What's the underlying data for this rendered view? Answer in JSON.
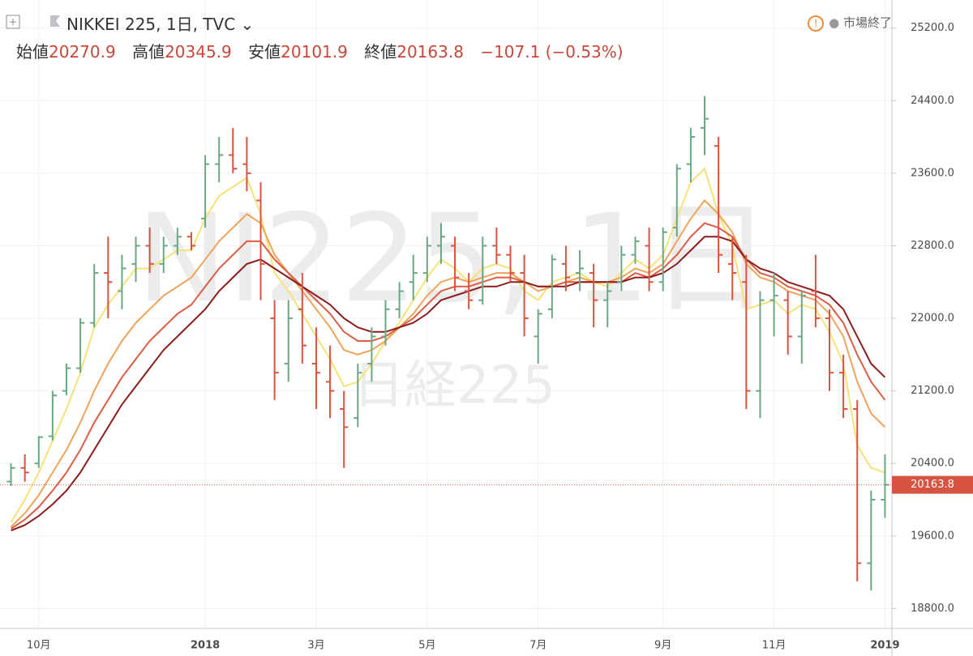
{
  "header": {
    "symbol": "NIKKEI 225, 1日, TVC",
    "open_label": "始値",
    "open": 20270.9,
    "high_label": "高値",
    "high": 20345.9,
    "low_label": "安値",
    "low": 20101.9,
    "close_label": "終値",
    "close": 20163.8,
    "change": "−107.1 (−0.53%)",
    "status": "市場終了"
  },
  "chart_data": {
    "type": "ohlc",
    "watermark": "NI225, 1日",
    "watermark_sub": "日経225",
    "categories": [
      null,
      null,
      "10月",
      null,
      null,
      null,
      null,
      null,
      null,
      null,
      null,
      null,
      null,
      null,
      "2018",
      null,
      null,
      null,
      null,
      null,
      null,
      null,
      "3月",
      null,
      null,
      null,
      null,
      null,
      null,
      null,
      "5月",
      null,
      null,
      null,
      null,
      null,
      null,
      null,
      "7月",
      null,
      null,
      null,
      null,
      null,
      null,
      null,
      null,
      "9月",
      null,
      null,
      null,
      null,
      null,
      null,
      null,
      "11月",
      null,
      null,
      null,
      null,
      null,
      null,
      null,
      "2019"
    ],
    "open": [
      20200,
      20350,
      20400,
      20700,
      21200,
      21450,
      21950,
      22500,
      22300,
      22600,
      22800,
      22600,
      22800,
      22900,
      23100,
      23700,
      23800,
      23700,
      23300,
      22000,
      21500,
      22100,
      21500,
      21300,
      21000,
      20900,
      21500,
      21800,
      22100,
      22400,
      22500,
      22800,
      22800,
      22300,
      22200,
      22800,
      22700,
      22500,
      21800,
      22100,
      22600,
      22500,
      22500,
      22200,
      22400,
      22700,
      22800,
      22400,
      23000,
      23700,
      24100,
      23900,
      22600,
      22400,
      21200,
      22200,
      22200,
      21800,
      22300,
      22000,
      21400,
      21000,
      19300,
      20000
    ],
    "high": [
      20400,
      20500,
      20700,
      21200,
      21500,
      22000,
      22600,
      22900,
      22700,
      22900,
      23000,
      22900,
      23000,
      22950,
      23800,
      24000,
      24100,
      24000,
      23500,
      22200,
      22200,
      22500,
      21900,
      21700,
      21200,
      21500,
      21900,
      22200,
      22400,
      22700,
      22900,
      23050,
      22900,
      22500,
      22900,
      23000,
      22800,
      22700,
      22100,
      22700,
      22800,
      22750,
      22600,
      22400,
      22800,
      22900,
      23000,
      23000,
      23700,
      24100,
      24450,
      24000,
      22900,
      22700,
      22300,
      22500,
      22300,
      22300,
      22700,
      22100,
      21600,
      21100,
      20100,
      20500
    ],
    "low": [
      20150,
      20200,
      20350,
      20650,
      21150,
      21400,
      21900,
      22000,
      22100,
      22400,
      22500,
      22500,
      22700,
      22750,
      23000,
      23500,
      23600,
      23400,
      22200,
      21100,
      21300,
      21500,
      21000,
      20900,
      20350,
      20800,
      21300,
      21700,
      22000,
      22200,
      22400,
      22600,
      22300,
      22100,
      22150,
      22600,
      22400,
      21800,
      21500,
      22000,
      22300,
      22300,
      21900,
      21900,
      22300,
      22600,
      22300,
      22300,
      22900,
      23500,
      23800,
      22500,
      22200,
      21000,
      20900,
      21800,
      21600,
      21500,
      21900,
      21200,
      20900,
      19100,
      19000,
      19800
    ],
    "close": [
      20350,
      20300,
      20690,
      21150,
      21450,
      21950,
      22500,
      22400,
      22550,
      22800,
      22600,
      22800,
      22900,
      22800,
      23700,
      23800,
      23650,
      23600,
      22600,
      21400,
      22000,
      21700,
      21400,
      21200,
      20800,
      21400,
      21800,
      22100,
      22300,
      22500,
      22800,
      22900,
      22450,
      22200,
      22800,
      22700,
      22500,
      22000,
      22050,
      22650,
      22450,
      22550,
      22200,
      22300,
      22700,
      22850,
      22400,
      22950,
      23650,
      24000,
      24200,
      22700,
      22500,
      21200,
      22200,
      22250,
      21800,
      22250,
      22000,
      21400,
      21000,
      19300,
      20000,
      20163.8
    ],
    "up_color": "#6aa884",
    "down_color": "#d75442",
    "last_line_color": "#d75442",
    "ma_lines": [
      {
        "color": "#f7e27a",
        "values": [
          19750,
          20000,
          20300,
          20650,
          21000,
          21400,
          21900,
          22150,
          22350,
          22550,
          22550,
          22650,
          22750,
          22750,
          23100,
          23350,
          23450,
          23550,
          23150,
          22500,
          22300,
          22050,
          21800,
          21550,
          21250,
          21300,
          21500,
          21750,
          21950,
          22200,
          22450,
          22650,
          22550,
          22400,
          22550,
          22600,
          22550,
          22300,
          22200,
          22400,
          22450,
          22500,
          22400,
          22350,
          22500,
          22650,
          22550,
          22700,
          23100,
          23500,
          23650,
          23150,
          22800,
          22100,
          22150,
          22200,
          22050,
          22150,
          22100,
          21850,
          21500,
          20600,
          20350,
          20300
        ]
      },
      {
        "color": "#efa45a",
        "values": [
          19700,
          19850,
          20050,
          20300,
          20550,
          20850,
          21200,
          21500,
          21750,
          21950,
          22100,
          22250,
          22350,
          22450,
          22650,
          22850,
          23000,
          23150,
          23050,
          22700,
          22500,
          22300,
          22100,
          21900,
          21650,
          21600,
          21650,
          21750,
          21900,
          22050,
          22250,
          22400,
          22450,
          22400,
          22450,
          22500,
          22500,
          22400,
          22300,
          22350,
          22400,
          22450,
          22400,
          22400,
          22450,
          22550,
          22500,
          22600,
          22850,
          23100,
          23300,
          23150,
          22950,
          22600,
          22450,
          22400,
          22300,
          22250,
          22200,
          22050,
          21800,
          21300,
          20950,
          20800
        ]
      },
      {
        "color": "#dc5c44",
        "values": [
          19680,
          19780,
          19920,
          20100,
          20300,
          20550,
          20850,
          21100,
          21350,
          21550,
          21750,
          21900,
          22050,
          22150,
          22350,
          22550,
          22700,
          22850,
          22850,
          22650,
          22500,
          22350,
          22200,
          22050,
          21850,
          21750,
          21750,
          21800,
          21900,
          22000,
          22150,
          22300,
          22350,
          22350,
          22400,
          22450,
          22450,
          22400,
          22350,
          22350,
          22400,
          22400,
          22400,
          22400,
          22400,
          22500,
          22450,
          22550,
          22700,
          22900,
          23050,
          23000,
          22900,
          22650,
          22500,
          22450,
          22350,
          22300,
          22250,
          22150,
          21950,
          21600,
          21300,
          21100
        ]
      },
      {
        "color": "#8b1d1d",
        "values": [
          19660,
          19720,
          19820,
          19950,
          20100,
          20300,
          20550,
          20800,
          21050,
          21250,
          21450,
          21650,
          21800,
          21950,
          22100,
          22300,
          22450,
          22600,
          22650,
          22550,
          22450,
          22350,
          22250,
          22150,
          22000,
          21900,
          21850,
          21850,
          21900,
          21950,
          22050,
          22200,
          22250,
          22300,
          22350,
          22350,
          22400,
          22400,
          22350,
          22350,
          22350,
          22400,
          22400,
          22400,
          22400,
          22450,
          22450,
          22500,
          22600,
          22750,
          22900,
          22900,
          22850,
          22650,
          22550,
          22500,
          22400,
          22350,
          22300,
          22250,
          22100,
          21800,
          21500,
          21350
        ]
      }
    ],
    "ylim": [
      18580,
      25510
    ],
    "yticks": [
      {
        "value": 18800,
        "label": "18800.0"
      },
      {
        "value": 19600,
        "label": "19600.0"
      },
      {
        "value": 20400,
        "label": "20400.0"
      },
      {
        "value": 21200,
        "label": "21200.0"
      },
      {
        "value": 22000,
        "label": "22000.0"
      },
      {
        "value": 22800,
        "label": "22800.0"
      },
      {
        "value": 23600,
        "label": "23600.0"
      },
      {
        "value": 24400,
        "label": "24400.0"
      },
      {
        "value": 25200,
        "label": "25200.0"
      }
    ],
    "grid": true
  }
}
